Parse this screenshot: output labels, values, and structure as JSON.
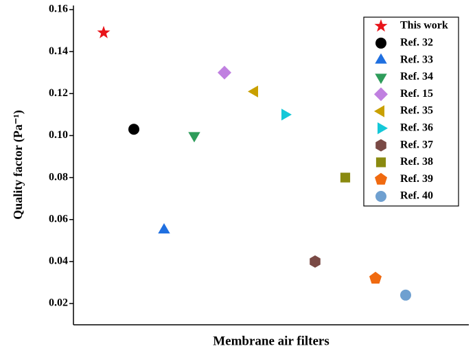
{
  "chart_data": {
    "type": "scatter",
    "xlabel": "Membrane air filters",
    "ylabel": "Quality factor (Pa⁻¹)",
    "ylim": [
      0.01,
      0.16
    ],
    "yticks": [
      0.02,
      0.04,
      0.06,
      0.08,
      {
        "value": 0.1,
        "label": "0.10"
      },
      0.12,
      0.14,
      0.16
    ],
    "legend": "upper right",
    "series": [
      {
        "name": "This work",
        "color": "#e8141a",
        "marker": "star",
        "values": [
          0.149
        ]
      },
      {
        "name": "Ref. 32",
        "color": "#000000",
        "marker": "circle",
        "values": [
          0.103
        ]
      },
      {
        "name": "Ref. 33",
        "color": "#1f6fe0",
        "marker": "triangle-up",
        "values": [
          0.055
        ]
      },
      {
        "name": "Ref. 34",
        "color": "#2e9c5a",
        "marker": "triangle-down",
        "values": [
          0.1
        ]
      },
      {
        "name": "Ref. 15",
        "color": "#c080e0",
        "marker": "diamond",
        "values": [
          0.13
        ]
      },
      {
        "name": "Ref. 35",
        "color": "#c9a000",
        "marker": "triangle-left",
        "values": [
          0.121
        ]
      },
      {
        "name": "Ref. 36",
        "color": "#14c8d8",
        "marker": "triangle-right",
        "values": [
          0.11
        ]
      },
      {
        "name": "Ref. 37",
        "color": "#7a4a45",
        "marker": "hexagon",
        "values": [
          0.04
        ]
      },
      {
        "name": "Ref. 38",
        "color": "#8a8a10",
        "marker": "square",
        "values": [
          0.08
        ]
      },
      {
        "name": "Ref. 39",
        "color": "#f06a10",
        "marker": "pentagon",
        "values": [
          0.032
        ]
      },
      {
        "name": "Ref. 40",
        "color": "#6fa0d0",
        "marker": "circle",
        "values": [
          0.024
        ]
      }
    ]
  }
}
